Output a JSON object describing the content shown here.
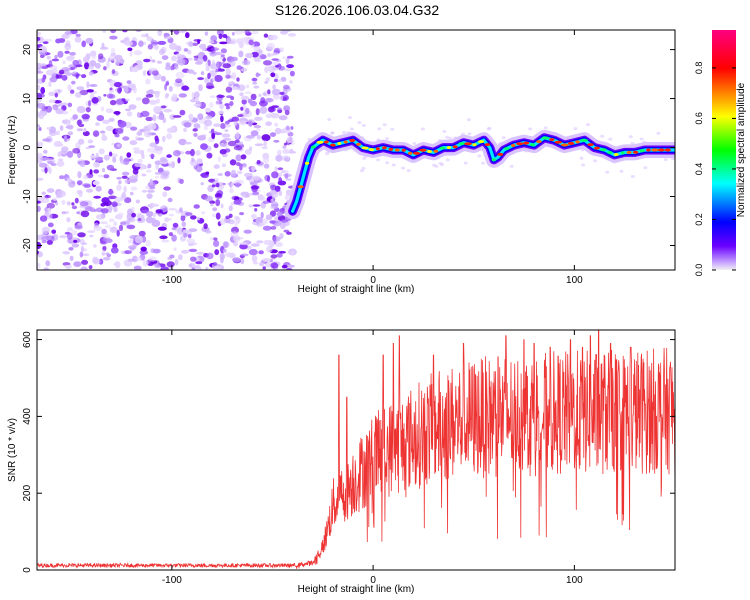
{
  "figure_title": "S126.2026.106.03.04.G32",
  "chart_data": [
    {
      "type": "heatmap",
      "title": "S126.2026.106.03.04.G32",
      "xlabel": "Height of straight line (km)",
      "ylabel": "Frequency (Hz)",
      "xlim": [
        -167,
        150
      ],
      "ylim": [
        -25,
        24
      ],
      "xticks": [
        -100,
        0,
        100
      ],
      "yticks": [
        -20,
        -10,
        0,
        10,
        20
      ],
      "colorbar": {
        "label": "Normalized spectral amplitude",
        "range": [
          0,
          0.95
        ],
        "ticks": [
          0.0,
          0.2,
          0.4,
          0.6,
          0.8
        ],
        "colors": [
          "#f0f0f0",
          "#6a00ff",
          "#0000ff",
          "#00ffff",
          "#00ff00",
          "#ffff00",
          "#ff0000",
          "#ff0080"
        ]
      },
      "noise_region_x": [
        -167,
        -40
      ],
      "ridge": {
        "x": [
          -40,
          -38,
          -36,
          -34,
          -32,
          -30,
          -25,
          -20,
          -15,
          -10,
          -5,
          0,
          5,
          10,
          15,
          20,
          25,
          30,
          35,
          40,
          45,
          50,
          55,
          58,
          60,
          62,
          65,
          70,
          75,
          80,
          85,
          90,
          95,
          100,
          105,
          110,
          115,
          120,
          125,
          130,
          135,
          140,
          145,
          150
        ],
        "y": [
          -13,
          -11,
          -8,
          -5,
          -2,
          0,
          1.5,
          0.5,
          1,
          1.5,
          0,
          -0.5,
          0,
          -0.5,
          -0.5,
          -1.5,
          -0.5,
          -1,
          0,
          0,
          1,
          0.5,
          1.5,
          0,
          -2.5,
          -2,
          -0.5,
          0.5,
          1,
          0.5,
          2,
          1.5,
          0.5,
          1,
          1.5,
          0,
          -0.5,
          -1.5,
          -1,
          -1,
          -0.5,
          -0.5,
          -0.5,
          -0.5
        ]
      }
    },
    {
      "type": "line",
      "xlabel": "Height of straight line (km)",
      "ylabel": "SNR (10 * v/v)",
      "xlim": [
        -167,
        150
      ],
      "ylim": [
        0,
        625
      ],
      "xticks": [
        -100,
        0,
        100
      ],
      "yticks": [
        0,
        200,
        400,
        600
      ],
      "series": [
        {
          "name": "SNR",
          "color": "#ee3333",
          "envelope": {
            "x": [
              -167,
              -40,
              -30,
              -25,
              -22,
              -20,
              -15,
              -10,
              -5,
              0,
              10,
              20,
              30,
              40,
              50,
              60,
              70,
              80,
              90,
              100,
              110,
              120,
              130,
              140,
              150
            ],
            "y": [
              12,
              12,
              18,
              60,
              120,
              170,
              200,
              230,
              260,
              290,
              320,
              345,
              370,
              385,
              395,
              400,
              405,
              405,
              408,
              410,
              410,
              410,
              412,
              415,
              415
            ]
          },
          "peaks": {
            "x": [
              -17,
              -13,
              5,
              10,
              13,
              30,
              45,
              62,
              66,
              75,
              80,
              88,
              98,
              104,
              108,
              112,
              118,
              128
            ],
            "y": [
              560,
              450,
              560,
              590,
              610,
              560,
              590,
              555,
              610,
              600,
              590,
              580,
              600,
              580,
              610,
              625,
              590,
              580
            ]
          }
        }
      ]
    }
  ]
}
